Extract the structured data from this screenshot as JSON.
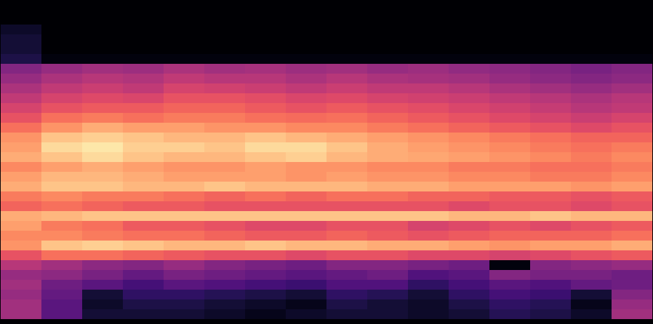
{
  "chart_data": {
    "type": "heatmap",
    "tick_labels": false,
    "zlim": [
      -80,
      0
    ],
    "cells": [
      [
        -80,
        -80,
        -80,
        -80,
        -80,
        -80,
        -80,
        -80,
        -80,
        -80,
        -80,
        -80,
        -80,
        -80,
        -80,
        -80
      ],
      [
        -80,
        -80,
        -80,
        -80,
        -80,
        -80,
        -80,
        -80,
        -80,
        -80,
        -80,
        -80,
        -80,
        -80,
        -80,
        -80
      ],
      [
        -74,
        -80,
        -80,
        -80,
        -80,
        -80,
        -80,
        -80,
        -80,
        -80,
        -80,
        -80,
        -80,
        -80,
        -80,
        -80
      ],
      [
        -72,
        -80,
        -80,
        -80,
        -80,
        -80,
        -80,
        -80,
        -80,
        -80,
        -80,
        -80,
        -80,
        -80,
        -80,
        -80
      ],
      [
        -72,
        -80,
        -80,
        -80,
        -80,
        -80,
        -80,
        -80,
        -80,
        -80,
        -80,
        -80,
        -80,
        -80,
        -80,
        -80
      ],
      [
        -70,
        -78,
        -78,
        -78,
        -78,
        -78,
        -78,
        -78,
        -78,
        -78,
        -78,
        -78,
        -78,
        -78,
        -78,
        -78
      ],
      [
        -50,
        -46,
        -44,
        -45,
        -42,
        -44,
        -43,
        -45,
        -44,
        -46,
        -45,
        -47,
        -48,
        -50,
        -52,
        -50
      ],
      [
        -46,
        -42,
        -40,
        -41,
        -38,
        -40,
        -40,
        -42,
        -40,
        -42,
        -43,
        -44,
        -46,
        -48,
        -50,
        -48
      ],
      [
        -42,
        -38,
        -36,
        -38,
        -34,
        -35,
        -36,
        -38,
        -36,
        -38,
        -38,
        -40,
        -42,
        -44,
        -46,
        -44
      ],
      [
        -38,
        -34,
        -32,
        -33,
        -30,
        -30,
        -31,
        -33,
        -32,
        -34,
        -35,
        -36,
        -38,
        -40,
        -42,
        -40
      ],
      [
        -34,
        -30,
        -28,
        -28,
        -26,
        -26,
        -28,
        -30,
        -28,
        -30,
        -31,
        -33,
        -35,
        -37,
        -40,
        -38
      ],
      [
        -30,
        -24,
        -22,
        -24,
        -22,
        -22,
        -24,
        -25,
        -24,
        -26,
        -28,
        -30,
        -32,
        -34,
        -36,
        -34
      ],
      [
        -24,
        -18,
        -14,
        -16,
        -16,
        -18,
        -18,
        -20,
        -20,
        -22,
        -24,
        -26,
        -28,
        -30,
        -32,
        -30
      ],
      [
        -18,
        -10,
        -8,
        -10,
        -12,
        -12,
        -10,
        -12,
        -14,
        -16,
        -18,
        -20,
        -22,
        -24,
        -26,
        -26
      ],
      [
        -16,
        -6,
        -4,
        -8,
        -8,
        -10,
        -6,
        -6,
        -10,
        -14,
        -16,
        -18,
        -20,
        -22,
        -24,
        -22
      ],
      [
        -14,
        -10,
        -6,
        -10,
        -12,
        -12,
        -10,
        -8,
        -12,
        -14,
        -15,
        -16,
        -18,
        -20,
        -22,
        -20
      ],
      [
        -20,
        -16,
        -14,
        -16,
        -18,
        -18,
        -16,
        -18,
        -18,
        -20,
        -20,
        -22,
        -22,
        -24,
        -24,
        -22
      ],
      [
        -16,
        -12,
        -12,
        -14,
        -16,
        -16,
        -16,
        -18,
        -16,
        -18,
        -18,
        -20,
        -20,
        -22,
        -22,
        -20
      ],
      [
        -14,
        -10,
        -10,
        -12,
        -12,
        -10,
        -12,
        -12,
        -12,
        -14,
        -14,
        -16,
        -16,
        -16,
        -18,
        -16
      ],
      [
        -22,
        -20,
        -22,
        -22,
        -24,
        -26,
        -24,
        -26,
        -24,
        -24,
        -26,
        -26,
        -28,
        -28,
        -30,
        -28
      ],
      [
        -26,
        -24,
        -26,
        -28,
        -28,
        -30,
        -30,
        -30,
        -30,
        -30,
        -30,
        -32,
        -30,
        -30,
        -32,
        -30
      ],
      [
        -14,
        -12,
        -10,
        -10,
        -10,
        -10,
        -10,
        -10,
        -10,
        -10,
        -10,
        -12,
        -12,
        -10,
        -12,
        -12
      ],
      [
        -16,
        -22,
        -24,
        -28,
        -28,
        -30,
        -32,
        -32,
        -30,
        -30,
        -34,
        -32,
        -30,
        -32,
        -30,
        -28
      ],
      [
        -20,
        -20,
        -22,
        -24,
        -24,
        -26,
        -28,
        -28,
        -26,
        -28,
        -30,
        -28,
        -26,
        -26,
        -26,
        -24
      ],
      [
        -18,
        -10,
        -8,
        -10,
        -12,
        -12,
        -10,
        -12,
        -12,
        -14,
        -14,
        -16,
        -18,
        -16,
        -16,
        -14
      ],
      [
        -30,
        -24,
        -24,
        -26,
        -28,
        -30,
        -30,
        -32,
        -30,
        -30,
        -32,
        -32,
        -34,
        -32,
        -30,
        -28
      ],
      [
        -40,
        -44,
        -48,
        -50,
        -46,
        -50,
        -52,
        -54,
        -50,
        -50,
        -52,
        -54,
        -78,
        -50,
        -48,
        -46
      ],
      [
        -46,
        -48,
        -52,
        -56,
        -52,
        -54,
        -56,
        -58,
        -56,
        -54,
        -60,
        -58,
        -50,
        -52,
        -52,
        -54
      ],
      [
        -44,
        -54,
        -58,
        -62,
        -58,
        -60,
        -62,
        -64,
        -60,
        -60,
        -66,
        -62,
        -58,
        -60,
        -56,
        -54
      ],
      [
        -46,
        -56,
        -72,
        -66,
        -66,
        -68,
        -70,
        -72,
        -66,
        -68,
        -72,
        -66,
        -62,
        -64,
        -72,
        -50
      ],
      [
        -44,
        -58,
        -74,
        -70,
        -70,
        -72,
        -74,
        -76,
        -70,
        -72,
        -74,
        -70,
        -66,
        -68,
        -76,
        -46
      ],
      [
        -44,
        -58,
        -72,
        -72,
        -72,
        -74,
        -76,
        -74,
        -72,
        -72,
        -74,
        -72,
        -68,
        -70,
        -74,
        -44
      ]
    ]
  }
}
